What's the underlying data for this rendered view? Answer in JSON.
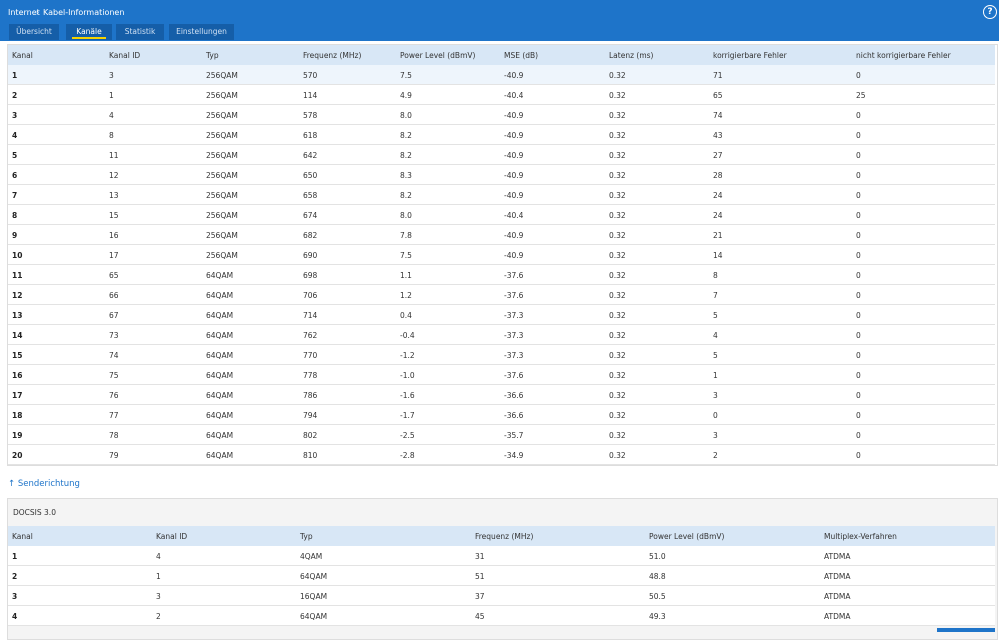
{
  "header": {
    "breadcrumb": [
      "Internet",
      "Kabel-Informationen"
    ],
    "help": "?"
  },
  "tabs": [
    "Übersicht",
    "Kanäle",
    "Statistik",
    "Einstellungen"
  ],
  "active_tab": 1,
  "downstream": {
    "columns": [
      "Kanal",
      "Kanal ID",
      "Typ",
      "Frequenz (MHz)",
      "Power Level (dBmV)",
      "MSE (dB)",
      "Latenz (ms)",
      "korrigierbare Fehler",
      "nicht korrigierbare Fehler"
    ],
    "rows": [
      [
        "1",
        "3",
        "256QAM",
        "570",
        "7.5",
        "-40.9",
        "0.32",
        "71",
        "0"
      ],
      [
        "2",
        "1",
        "256QAM",
        "114",
        "4.9",
        "-40.4",
        "0.32",
        "65",
        "25"
      ],
      [
        "3",
        "4",
        "256QAM",
        "578",
        "8.0",
        "-40.9",
        "0.32",
        "74",
        "0"
      ],
      [
        "4",
        "8",
        "256QAM",
        "618",
        "8.2",
        "-40.9",
        "0.32",
        "43",
        "0"
      ],
      [
        "5",
        "11",
        "256QAM",
        "642",
        "8.2",
        "-40.9",
        "0.32",
        "27",
        "0"
      ],
      [
        "6",
        "12",
        "256QAM",
        "650",
        "8.3",
        "-40.9",
        "0.32",
        "28",
        "0"
      ],
      [
        "7",
        "13",
        "256QAM",
        "658",
        "8.2",
        "-40.9",
        "0.32",
        "24",
        "0"
      ],
      [
        "8",
        "15",
        "256QAM",
        "674",
        "8.0",
        "-40.4",
        "0.32",
        "24",
        "0"
      ],
      [
        "9",
        "16",
        "256QAM",
        "682",
        "7.8",
        "-40.9",
        "0.32",
        "21",
        "0"
      ],
      [
        "10",
        "17",
        "256QAM",
        "690",
        "7.5",
        "-40.9",
        "0.32",
        "14",
        "0"
      ],
      [
        "11",
        "65",
        "64QAM",
        "698",
        "1.1",
        "-37.6",
        "0.32",
        "8",
        "0"
      ],
      [
        "12",
        "66",
        "64QAM",
        "706",
        "1.2",
        "-37.6",
        "0.32",
        "7",
        "0"
      ],
      [
        "13",
        "67",
        "64QAM",
        "714",
        "0.4",
        "-37.3",
        "0.32",
        "5",
        "0"
      ],
      [
        "14",
        "73",
        "64QAM",
        "762",
        "-0.4",
        "-37.3",
        "0.32",
        "4",
        "0"
      ],
      [
        "15",
        "74",
        "64QAM",
        "770",
        "-1.2",
        "-37.3",
        "0.32",
        "5",
        "0"
      ],
      [
        "16",
        "75",
        "64QAM",
        "778",
        "-1.0",
        "-37.6",
        "0.32",
        "1",
        "0"
      ],
      [
        "17",
        "76",
        "64QAM",
        "786",
        "-1.6",
        "-36.6",
        "0.32",
        "3",
        "0"
      ],
      [
        "18",
        "77",
        "64QAM",
        "794",
        "-1.7",
        "-36.6",
        "0.32",
        "0",
        "0"
      ],
      [
        "19",
        "78",
        "64QAM",
        "802",
        "-2.5",
        "-35.7",
        "0.32",
        "3",
        "0"
      ],
      [
        "20",
        "79",
        "64QAM",
        "810",
        "-2.8",
        "-34.9",
        "0.32",
        "2",
        "0"
      ]
    ]
  },
  "upstream_link": "↑ Senderichtung",
  "upstream": {
    "title": "DOCSIS 3.0",
    "columns": [
      "Kanal",
      "Kanal ID",
      "Typ",
      "Frequenz (MHz)",
      "Power Level (dBmV)",
      "Multiplex-Verfahren"
    ],
    "rows": [
      [
        "1",
        "4",
        "4QAM",
        "31",
        "51.0",
        "ATDMA"
      ],
      [
        "2",
        "1",
        "64QAM",
        "51",
        "48.8",
        "ATDMA"
      ],
      [
        "3",
        "3",
        "16QAM",
        "37",
        "50.5",
        "ATDMA"
      ],
      [
        "4",
        "2",
        "64QAM",
        "45",
        "49.3",
        "ATDMA"
      ]
    ]
  }
}
